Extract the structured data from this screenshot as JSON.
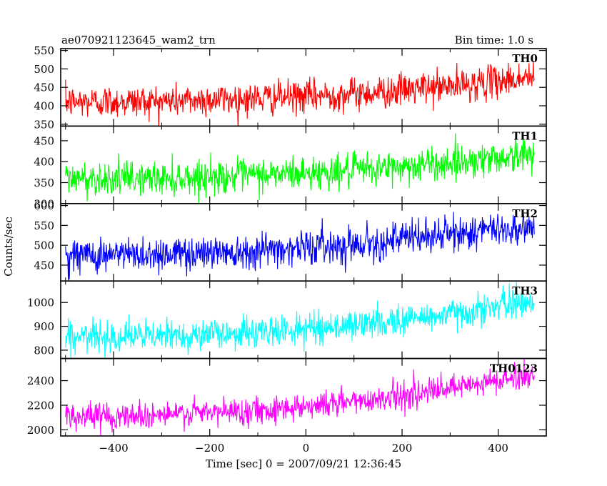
{
  "header": {
    "title": "ae070921123645_wam2_trn",
    "bin_time": "Bin time: 1.0 s"
  },
  "chart_data": {
    "type": "line",
    "title": "ae070921123645_wam2_trn",
    "subtitle": "Bin time: 1.0 s",
    "xlabel": "Time [sec] 0 = 2007/09/21 12:36:45",
    "ylabel": "Counts/sec",
    "xlim": [
      -510,
      500
    ],
    "x_range_data": [
      -500,
      475
    ],
    "bin_time_s": 1.0,
    "x_ticks": [
      -400,
      -200,
      0,
      200,
      400
    ],
    "x_tick_labels": [
      "−400",
      "−200",
      "0",
      "200",
      "400"
    ],
    "grid": false,
    "noise_seed": 12345,
    "panels": [
      {
        "name": "TH0",
        "color": "#ff0000",
        "ylim": [
          345,
          555
        ],
        "y_ticks": [
          350,
          400,
          450,
          500,
          550
        ],
        "y_tick_labels": [
          "350",
          "400",
          "450",
          "500",
          "550"
        ],
        "trend_x": [
          -500,
          -300,
          -100,
          100,
          300,
          475
        ],
        "trend_y": [
          410,
          413,
          420,
          432,
          453,
          478
        ],
        "noise": 22
      },
      {
        "name": "TH1",
        "color": "#00ff00",
        "ylim": [
          300,
          485
        ],
        "y_ticks": [
          300,
          350,
          400,
          450
        ],
        "y_tick_labels": [
          "300",
          "350",
          "400",
          "450"
        ],
        "trend_x": [
          -500,
          -300,
          -100,
          100,
          300,
          475
        ],
        "trend_y": [
          360,
          360,
          368,
          378,
          398,
          418
        ],
        "noise": 20
      },
      {
        "name": "TH2",
        "color": "#0000ff",
        "ylim": [
          410,
          605
        ],
        "y_ticks": [
          450,
          500,
          550,
          600
        ],
        "y_tick_labels": [
          "450",
          "500",
          "550",
          "600"
        ],
        "trend_x": [
          -500,
          -300,
          -100,
          100,
          300,
          475
        ],
        "trend_y": [
          475,
          478,
          488,
          503,
          528,
          548
        ],
        "noise": 22
      },
      {
        "name": "TH3",
        "color": "#00ffff",
        "ylim": [
          765,
          1090
        ],
        "y_ticks": [
          800,
          900,
          1000
        ],
        "y_tick_labels": [
          "800",
          "900",
          "1000"
        ],
        "trend_x": [
          -500,
          -300,
          -100,
          100,
          300,
          475
        ],
        "trend_y": [
          855,
          860,
          875,
          905,
          950,
          1010
        ],
        "noise": 32
      },
      {
        "name": "TH0123",
        "color": "#ff00ff",
        "ylim": [
          1950,
          2580
        ],
        "y_ticks": [
          2000,
          2200,
          2400
        ],
        "y_tick_labels": [
          "2000",
          "2200",
          "2400"
        ],
        "trend_x": [
          -500,
          -300,
          -100,
          100,
          300,
          475
        ],
        "trend_y": [
          2110,
          2120,
          2160,
          2230,
          2330,
          2450
        ],
        "noise": 55
      }
    ]
  }
}
